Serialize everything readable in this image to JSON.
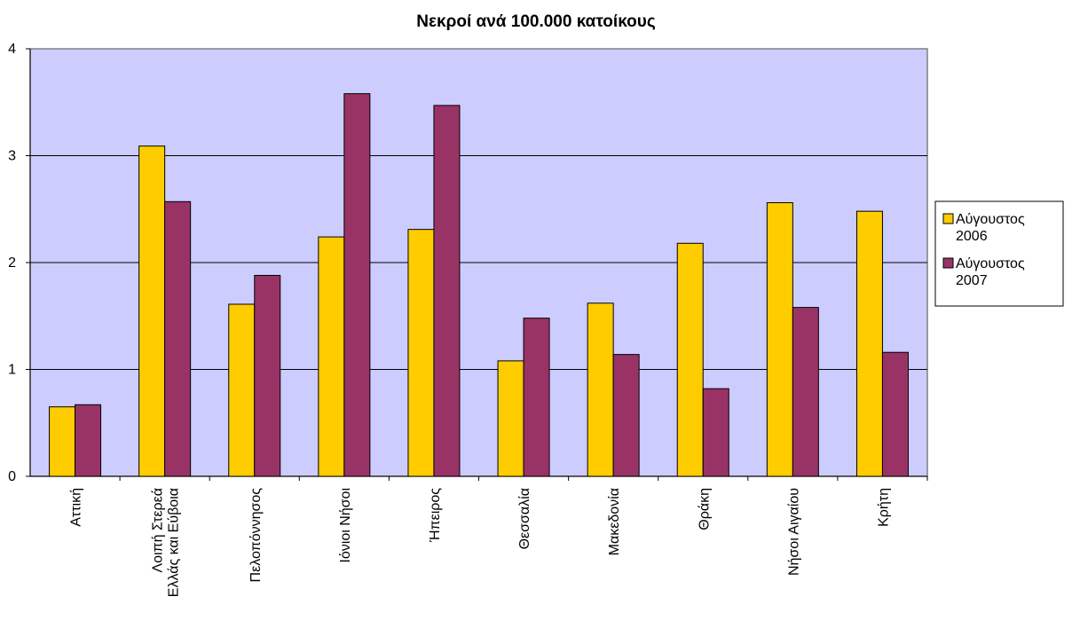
{
  "chart_data": {
    "type": "bar",
    "title": "Νεκροί ανά 100.000 κατοίκους",
    "xlabel": "",
    "ylabel": "",
    "ylim": [
      0,
      4
    ],
    "yticks": [
      0,
      1,
      2,
      3,
      4
    ],
    "grid": true,
    "legend_position": "right",
    "plot_background": "#ccccff",
    "categories": [
      [
        "Αττική"
      ],
      [
        "Λοιπή Στερεά",
        "Ελλάς και Εύβοια"
      ],
      [
        "Πελοπόννησος"
      ],
      [
        "Ιόνιοι Νήσοι"
      ],
      [
        "Ήπειρος"
      ],
      [
        "Θεσσαλία"
      ],
      [
        "Μακεδονία"
      ],
      [
        "Θράκη"
      ],
      [
        "Νήσοι Αιγαίου"
      ],
      [
        "Κρήτη"
      ]
    ],
    "series": [
      {
        "name": [
          "Αύγουστος",
          "2006"
        ],
        "color": "#ffcc00",
        "values": [
          0.65,
          3.09,
          1.61,
          2.24,
          2.31,
          1.08,
          1.62,
          2.18,
          2.56,
          2.48
        ]
      },
      {
        "name": [
          "Αύγουστος",
          "2007"
        ],
        "color": "#993366",
        "values": [
          0.67,
          2.57,
          1.88,
          3.58,
          3.47,
          1.48,
          1.14,
          0.82,
          1.58,
          1.16
        ]
      }
    ]
  }
}
